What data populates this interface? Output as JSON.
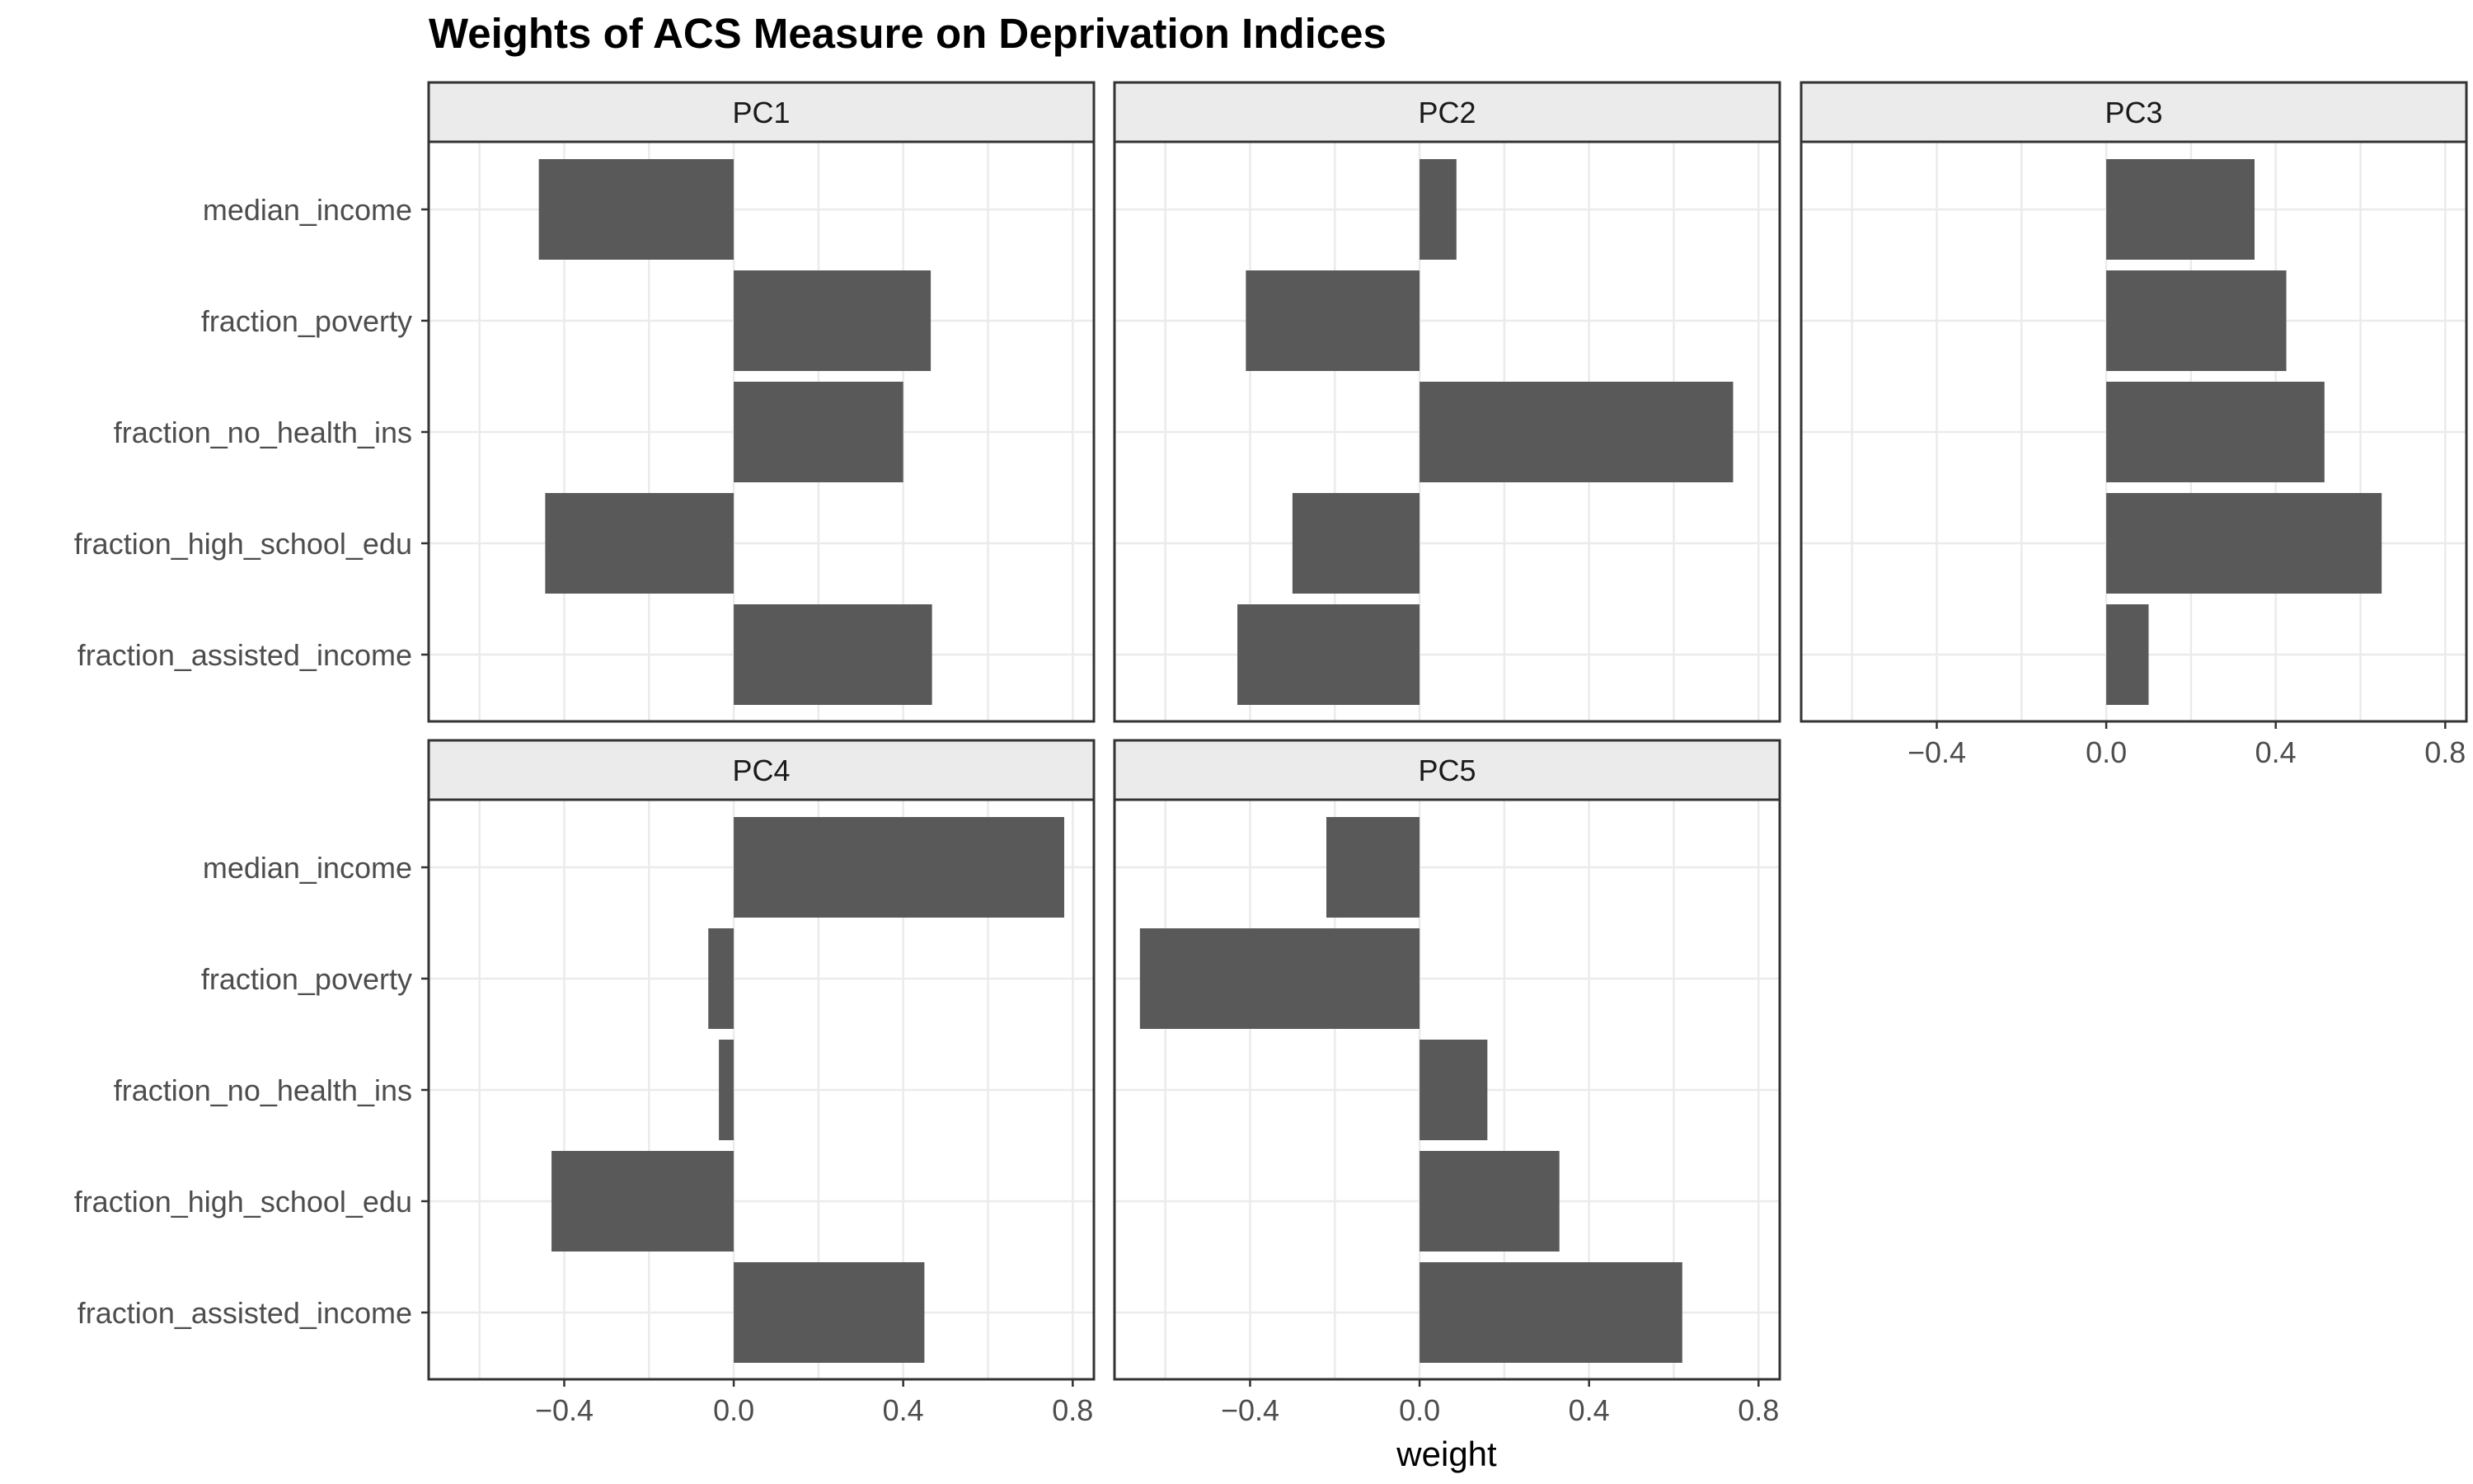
{
  "chart_data": {
    "type": "bar",
    "orientation": "horizontal",
    "title": "Weights of ACS Measure on Deprivation Indices",
    "xlabel": "weight",
    "ylabel": "",
    "xlim": [
      -0.72,
      0.85
    ],
    "x_ticks": [
      -0.4,
      0.0,
      0.4,
      0.8
    ],
    "x_tick_labels": [
      "−0.4",
      "0.0",
      "0.4",
      "0.8"
    ],
    "categories": [
      "median_income",
      "fraction_poverty",
      "fraction_no_health_ins",
      "fraction_high_school_edu",
      "fraction_assisted_income"
    ],
    "grid": true,
    "facets": [
      {
        "name": "PC1",
        "values": [
          -0.46,
          0.465,
          0.4,
          -0.445,
          0.468
        ]
      },
      {
        "name": "PC2",
        "values": [
          0.087,
          -0.41,
          0.74,
          -0.3,
          -0.43
        ]
      },
      {
        "name": "PC3",
        "values": [
          0.35,
          0.425,
          0.515,
          0.65,
          0.1
        ]
      },
      {
        "name": "PC4",
        "values": [
          0.78,
          -0.06,
          -0.035,
          -0.43,
          0.45
        ]
      },
      {
        "name": "PC5",
        "values": [
          -0.22,
          -0.66,
          0.16,
          0.33,
          0.62
        ]
      }
    ],
    "bar_color": "#595959"
  }
}
